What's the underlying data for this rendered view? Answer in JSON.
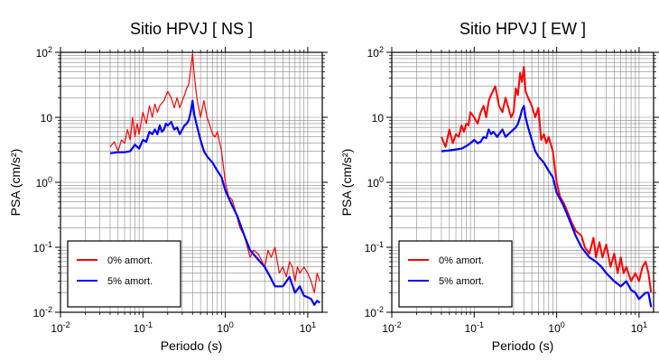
{
  "chart_data": [
    {
      "type": "line",
      "title": "Sitio HPVJ [ NS ]",
      "xlabel": "Periodo (s)",
      "ylabel": "PSA (cm/s²)",
      "xscale": "log",
      "yscale": "log",
      "xlim": [
        0.01,
        15
      ],
      "ylim": [
        0.01,
        100
      ],
      "x_ticks": [
        0.01,
        0.1,
        1,
        10
      ],
      "x_tick_labels": [
        [
          "10",
          "-2"
        ],
        [
          "10",
          "-1"
        ],
        [
          "10",
          "0"
        ],
        [
          "10",
          "1"
        ]
      ],
      "y_ticks": [
        0.01,
        0.1,
        1,
        10,
        100
      ],
      "y_tick_labels": [
        [
          "10",
          "-2"
        ],
        [
          "10",
          "-1"
        ],
        [
          "10",
          "0"
        ],
        [
          "10"
        ],
        [
          "10",
          "2"
        ]
      ],
      "grid": true,
      "legend": "bottom-left",
      "series": [
        {
          "name": "0% amort.",
          "color": "#ff0000",
          "x": [
            0.04,
            0.045,
            0.05,
            0.055,
            0.06,
            0.065,
            0.07,
            0.075,
            0.08,
            0.085,
            0.09,
            0.1,
            0.11,
            0.12,
            0.13,
            0.14,
            0.15,
            0.16,
            0.18,
            0.2,
            0.22,
            0.24,
            0.26,
            0.28,
            0.3,
            0.32,
            0.34,
            0.36,
            0.38,
            0.4,
            0.42,
            0.45,
            0.5,
            0.55,
            0.6,
            0.65,
            0.7,
            0.75,
            0.8,
            0.9,
            1.0,
            1.1,
            1.2,
            1.3,
            1.5,
            1.7,
            2.0,
            2.2,
            2.5,
            2.8,
            3.0,
            3.3,
            3.6,
            4.0,
            4.5,
            5.0,
            5.5,
            6.0,
            6.5,
            7.0,
            7.5,
            8.0,
            9.0,
            10.0,
            11.0,
            12.0,
            13.0,
            14.0
          ],
          "y": [
            3.5,
            4.2,
            3.0,
            4.5,
            4.0,
            6.5,
            4.5,
            10.0,
            5.0,
            8.0,
            5.5,
            12.0,
            8.0,
            15.0,
            10.0,
            16.0,
            12.0,
            15.0,
            18.0,
            25.0,
            20.0,
            14.0,
            20.0,
            14.0,
            18.0,
            22.0,
            28.0,
            32.0,
            55.0,
            95.0,
            45.0,
            20.0,
            10.0,
            18.0,
            10.0,
            7.5,
            5.5,
            5.0,
            6.0,
            3.0,
            1.0,
            0.6,
            0.55,
            0.4,
            0.2,
            0.15,
            0.07,
            0.09,
            0.08,
            0.06,
            0.05,
            0.09,
            0.07,
            0.1,
            0.04,
            0.05,
            0.035,
            0.06,
            0.05,
            0.03,
            0.05,
            0.04,
            0.05,
            0.04,
            0.03,
            0.02,
            0.04,
            0.03
          ]
        },
        {
          "name": "5% amort.",
          "color": "#0000ff",
          "x": [
            0.04,
            0.05,
            0.06,
            0.07,
            0.08,
            0.09,
            0.1,
            0.11,
            0.12,
            0.13,
            0.14,
            0.15,
            0.16,
            0.17,
            0.18,
            0.19,
            0.2,
            0.22,
            0.24,
            0.26,
            0.28,
            0.3,
            0.32,
            0.34,
            0.36,
            0.38,
            0.4,
            0.42,
            0.45,
            0.5,
            0.55,
            0.6,
            0.7,
            0.8,
            0.9,
            1.0,
            1.2,
            1.4,
            1.7,
            2.0,
            2.5,
            3.0,
            3.5,
            4.0,
            5.0,
            6.0,
            7.0,
            8.0,
            9.0,
            10.0,
            11.0,
            12.0,
            13.0,
            14.0
          ],
          "y": [
            2.8,
            2.9,
            2.9,
            3.0,
            3.8,
            3.3,
            4.5,
            4.2,
            6.0,
            5.5,
            6.5,
            5.5,
            7.5,
            6.0,
            6.5,
            8.0,
            7.5,
            8.5,
            6.5,
            7.0,
            5.5,
            6.5,
            7.5,
            8.0,
            9.0,
            12.0,
            18.0,
            11.0,
            7.5,
            4.5,
            3.0,
            2.5,
            2.0,
            1.5,
            1.2,
            0.75,
            0.45,
            0.3,
            0.15,
            0.09,
            0.065,
            0.05,
            0.035,
            0.025,
            0.025,
            0.035,
            0.02,
            0.025,
            0.018,
            0.017,
            0.016,
            0.013,
            0.015,
            0.014
          ]
        }
      ]
    },
    {
      "type": "line",
      "title": "Sitio HPVJ [ EW ]",
      "xlabel": "Periodo (s)",
      "ylabel": "PSA (cm/s²)",
      "xscale": "log",
      "yscale": "log",
      "xlim": [
        0.01,
        15
      ],
      "ylim": [
        0.01,
        100
      ],
      "x_ticks": [
        0.01,
        0.1,
        1,
        10
      ],
      "x_tick_labels": [
        [
          "10",
          "-2"
        ],
        [
          "10",
          "-1"
        ],
        [
          "10",
          "0"
        ],
        [
          "10",
          "1"
        ]
      ],
      "y_ticks": [
        0.01,
        0.1,
        1,
        10,
        100
      ],
      "y_tick_labels": [
        [
          "10",
          "-2"
        ],
        [
          "10",
          "-1"
        ],
        [
          "10",
          "0"
        ],
        [
          "10"
        ],
        [
          "10",
          "2"
        ]
      ],
      "grid": true,
      "legend": "bottom-left",
      "series": [
        {
          "name": "0% amort.",
          "color": "#ff0000",
          "x": [
            0.04,
            0.045,
            0.05,
            0.055,
            0.06,
            0.065,
            0.07,
            0.075,
            0.08,
            0.085,
            0.09,
            0.1,
            0.11,
            0.12,
            0.13,
            0.14,
            0.15,
            0.16,
            0.18,
            0.2,
            0.22,
            0.24,
            0.26,
            0.28,
            0.3,
            0.32,
            0.34,
            0.36,
            0.38,
            0.4,
            0.42,
            0.45,
            0.5,
            0.55,
            0.6,
            0.65,
            0.7,
            0.75,
            0.8,
            0.9,
            1.0,
            1.1,
            1.2,
            1.3,
            1.5,
            1.7,
            2.0,
            2.2,
            2.5,
            2.8,
            3.0,
            3.3,
            3.6,
            4.0,
            4.5,
            5.0,
            5.5,
            6.0,
            6.5,
            7.0,
            8.0,
            9.0,
            10.0,
            11.0,
            12.0,
            13.0,
            14.0
          ],
          "y": [
            5.0,
            3.5,
            6.5,
            4.0,
            5.5,
            5.0,
            7.5,
            6.0,
            8.0,
            7.5,
            12.0,
            10.0,
            8.0,
            12.0,
            15.0,
            10.0,
            18.0,
            22.0,
            30.0,
            15.0,
            12.0,
            20.0,
            14.0,
            10.0,
            12.0,
            28.0,
            22.0,
            48.0,
            35.0,
            60.0,
            25.0,
            20.0,
            15.0,
            10.0,
            14.0,
            4.5,
            5.5,
            4.0,
            5.0,
            3.0,
            1.0,
            0.6,
            0.5,
            0.4,
            0.25,
            0.18,
            0.15,
            0.1,
            0.08,
            0.14,
            0.07,
            0.12,
            0.07,
            0.11,
            0.05,
            0.08,
            0.04,
            0.07,
            0.04,
            0.05,
            0.03,
            0.04,
            0.03,
            0.05,
            0.06,
            0.04,
            0.02
          ]
        },
        {
          "name": "5% amort.",
          "color": "#0000ff",
          "x": [
            0.04,
            0.05,
            0.06,
            0.07,
            0.08,
            0.09,
            0.1,
            0.11,
            0.12,
            0.13,
            0.14,
            0.15,
            0.16,
            0.17,
            0.18,
            0.19,
            0.2,
            0.22,
            0.24,
            0.26,
            0.28,
            0.3,
            0.32,
            0.34,
            0.36,
            0.38,
            0.4,
            0.42,
            0.45,
            0.5,
            0.55,
            0.6,
            0.7,
            0.8,
            0.9,
            1.0,
            1.2,
            1.4,
            1.7,
            2.0,
            2.5,
            3.0,
            3.5,
            4.0,
            5.0,
            6.0,
            7.0,
            8.0,
            9.0,
            10.0,
            11.0,
            12.0,
            13.0,
            14.0
          ],
          "y": [
            3.0,
            3.1,
            3.2,
            3.3,
            3.6,
            4.0,
            4.5,
            4.0,
            4.2,
            5.0,
            4.8,
            6.5,
            5.5,
            6.0,
            5.5,
            5.0,
            5.5,
            6.5,
            5.0,
            5.5,
            6.0,
            6.5,
            7.0,
            8.0,
            10.0,
            13.0,
            15.0,
            10.0,
            7.0,
            4.5,
            3.0,
            2.5,
            2.0,
            1.5,
            1.2,
            0.7,
            0.45,
            0.28,
            0.15,
            0.1,
            0.07,
            0.06,
            0.05,
            0.04,
            0.03,
            0.025,
            0.03,
            0.022,
            0.02,
            0.016,
            0.018,
            0.02,
            0.02,
            0.012
          ]
        }
      ]
    }
  ]
}
